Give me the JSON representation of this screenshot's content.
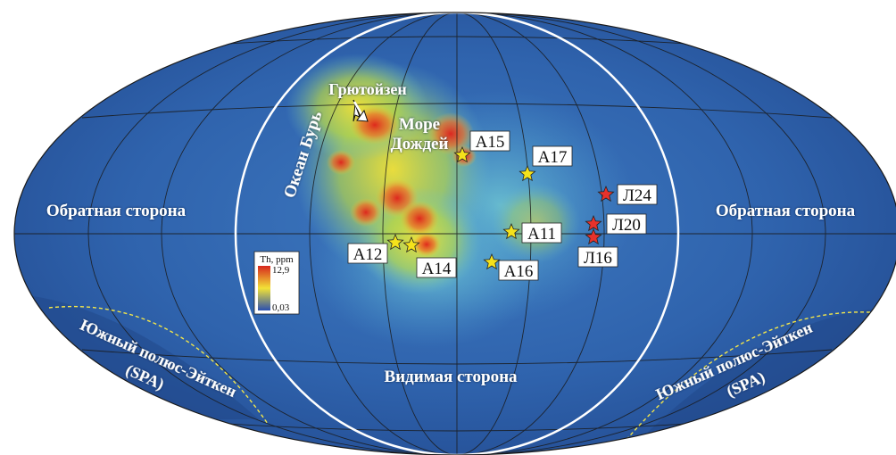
{
  "labels": {
    "far_side_left": "Обратная сторона",
    "far_side_right": "Обратная сторона",
    "near_side": "Видимая сторона",
    "oceanus": "Океан Бурь",
    "gruithuisen": "Грютойзен",
    "mare_line1": "Море",
    "mare_line2": "Дождей",
    "spa_left_line1": "Южный полюс-Эйткен",
    "spa_left_line2": "(SPA)",
    "spa_right_line1": "Южный полюс-Эйткен",
    "spa_right_line2": "(SPA)"
  },
  "legend": {
    "title": "Th, ppm",
    "max": "12,9",
    "min": "0,03"
  },
  "sites": {
    "apollo": [
      {
        "name": "A15"
      },
      {
        "name": "A17"
      },
      {
        "name": "A11"
      },
      {
        "name": "A16"
      },
      {
        "name": "A12"
      },
      {
        "name": "A14"
      }
    ],
    "luna": [
      {
        "name": "Л24"
      },
      {
        "name": "Л20"
      },
      {
        "name": "Л16"
      }
    ]
  },
  "colors": {
    "apollo_star": "#f5e21b",
    "luna_star": "#e8322b",
    "background": "#2e5fa8",
    "graticule": "#1a1a1a",
    "near_side_boundary": "#ffffff",
    "spa_outline": "#f3e64a",
    "legend_high": "#d7261e",
    "legend_mid": "#f2e236",
    "legend_low": "#2a4fb0"
  }
}
